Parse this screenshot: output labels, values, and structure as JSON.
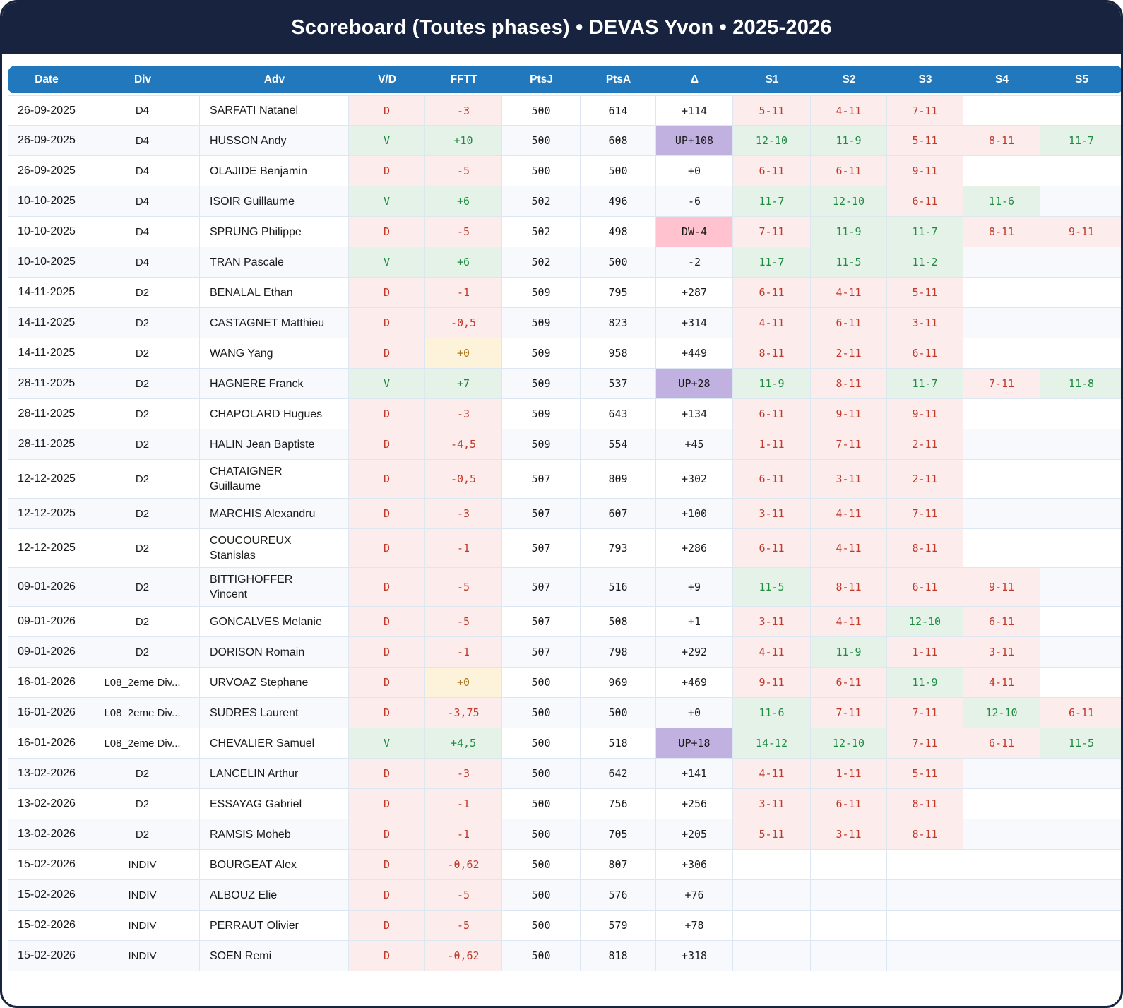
{
  "title": "Scoreboard (Toutes phases) • DEVAS Yvon • 2025-2026",
  "columns": [
    "Date",
    "Div",
    "Adv",
    "V/D",
    "FFTT",
    "PtsJ",
    "PtsA",
    "Δ",
    "S1",
    "S2",
    "S3",
    "S4",
    "S5"
  ],
  "colors": {
    "navy": "#18233f",
    "header_blue": "#2178bd",
    "win_bg": "#e4f2e8",
    "win_text": "#1e8b41",
    "loss_bg": "#fdecec",
    "loss_text": "#c0392b",
    "zero_bg": "#fdf2da",
    "zero_text": "#a9771b",
    "up_bg": "#c0b1e1",
    "down_bg": "#ffc2ce",
    "stripe": "#f7f9fc",
    "grid": "#dde7f2"
  },
  "chart_data": {
    "type": "table",
    "title": "Scoreboard (Toutes phases) • DEVAS Yvon • 2025-2026",
    "columns": [
      "Date",
      "Div",
      "Adv",
      "V/D",
      "FFTT",
      "PtsJ",
      "PtsA",
      "Δ",
      "S1",
      "S2",
      "S3",
      "S4",
      "S5"
    ]
  },
  "rows": [
    {
      "date": "26-09-2025",
      "div": "D4",
      "adv": "SARFATI Natanel",
      "vd": "D",
      "fftt": "-3",
      "ptsj": "500",
      "ptsa": "614",
      "delta": "+114",
      "sets": [
        "5-11",
        "4-11",
        "7-11"
      ]
    },
    {
      "date": "26-09-2025",
      "div": "D4",
      "adv": "HUSSON Andy",
      "vd": "V",
      "fftt": "+10",
      "ptsj": "500",
      "ptsa": "608",
      "delta": "UP+108",
      "sets": [
        "12-10",
        "11-9",
        "5-11",
        "8-11",
        "11-7"
      ]
    },
    {
      "date": "26-09-2025",
      "div": "D4",
      "adv": "OLAJIDE Benjamin",
      "vd": "D",
      "fftt": "-5",
      "ptsj": "500",
      "ptsa": "500",
      "delta": "+0",
      "sets": [
        "6-11",
        "6-11",
        "9-11"
      ]
    },
    {
      "date": "10-10-2025",
      "div": "D4",
      "adv": "ISOIR Guillaume",
      "vd": "V",
      "fftt": "+6",
      "ptsj": "502",
      "ptsa": "496",
      "delta": "-6",
      "sets": [
        "11-7",
        "12-10",
        "6-11",
        "11-6"
      ]
    },
    {
      "date": "10-10-2025",
      "div": "D4",
      "adv": "SPRUNG Philippe",
      "vd": "D",
      "fftt": "-5",
      "ptsj": "502",
      "ptsa": "498",
      "delta": "DW-4",
      "sets": [
        "7-11",
        "11-9",
        "11-7",
        "8-11",
        "9-11"
      ]
    },
    {
      "date": "10-10-2025",
      "div": "D4",
      "adv": "TRAN Pascale",
      "vd": "V",
      "fftt": "+6",
      "ptsj": "502",
      "ptsa": "500",
      "delta": "-2",
      "sets": [
        "11-7",
        "11-5",
        "11-2"
      ]
    },
    {
      "date": "14-11-2025",
      "div": "D2",
      "adv": "BENALAL Ethan",
      "vd": "D",
      "fftt": "-1",
      "ptsj": "509",
      "ptsa": "795",
      "delta": "+287",
      "sets": [
        "6-11",
        "4-11",
        "5-11"
      ]
    },
    {
      "date": "14-11-2025",
      "div": "D2",
      "adv": "CASTAGNET Matthieu",
      "vd": "D",
      "fftt": "-0,5",
      "ptsj": "509",
      "ptsa": "823",
      "delta": "+314",
      "sets": [
        "4-11",
        "6-11",
        "3-11"
      ]
    },
    {
      "date": "14-11-2025",
      "div": "D2",
      "adv": "WANG Yang",
      "vd": "D",
      "fftt": "+0",
      "ptsj": "509",
      "ptsa": "958",
      "delta": "+449",
      "sets": [
        "8-11",
        "2-11",
        "6-11"
      ]
    },
    {
      "date": "28-11-2025",
      "div": "D2",
      "adv": "HAGNERE Franck",
      "vd": "V",
      "fftt": "+7",
      "ptsj": "509",
      "ptsa": "537",
      "delta": "UP+28",
      "sets": [
        "11-9",
        "8-11",
        "11-7",
        "7-11",
        "11-8"
      ]
    },
    {
      "date": "28-11-2025",
      "div": "D2",
      "adv": "CHAPOLARD Hugues",
      "vd": "D",
      "fftt": "-3",
      "ptsj": "509",
      "ptsa": "643",
      "delta": "+134",
      "sets": [
        "6-11",
        "9-11",
        "9-11"
      ]
    },
    {
      "date": "28-11-2025",
      "div": "D2",
      "adv": "HALIN Jean Baptiste",
      "vd": "D",
      "fftt": "-4,5",
      "ptsj": "509",
      "ptsa": "554",
      "delta": "+45",
      "sets": [
        "1-11",
        "7-11",
        "2-11"
      ]
    },
    {
      "date": "12-12-2025",
      "div": "D2",
      "adv": "CHATAIGNER\nGuillaume",
      "vd": "D",
      "fftt": "-0,5",
      "ptsj": "507",
      "ptsa": "809",
      "delta": "+302",
      "sets": [
        "6-11",
        "3-11",
        "2-11"
      ]
    },
    {
      "date": "12-12-2025",
      "div": "D2",
      "adv": "MARCHIS Alexandru",
      "vd": "D",
      "fftt": "-3",
      "ptsj": "507",
      "ptsa": "607",
      "delta": "+100",
      "sets": [
        "3-11",
        "4-11",
        "7-11"
      ]
    },
    {
      "date": "12-12-2025",
      "div": "D2",
      "adv": "COUCOUREUX\nStanislas",
      "vd": "D",
      "fftt": "-1",
      "ptsj": "507",
      "ptsa": "793",
      "delta": "+286",
      "sets": [
        "6-11",
        "4-11",
        "8-11"
      ]
    },
    {
      "date": "09-01-2026",
      "div": "D2",
      "adv": "BITTIGHOFFER\nVincent",
      "vd": "D",
      "fftt": "-5",
      "ptsj": "507",
      "ptsa": "516",
      "delta": "+9",
      "sets": [
        "11-5",
        "8-11",
        "6-11",
        "9-11"
      ]
    },
    {
      "date": "09-01-2026",
      "div": "D2",
      "adv": "GONCALVES Melanie",
      "vd": "D",
      "fftt": "-5",
      "ptsj": "507",
      "ptsa": "508",
      "delta": "+1",
      "sets": [
        "3-11",
        "4-11",
        "12-10",
        "6-11"
      ]
    },
    {
      "date": "09-01-2026",
      "div": "D2",
      "adv": "DORISON Romain",
      "vd": "D",
      "fftt": "-1",
      "ptsj": "507",
      "ptsa": "798",
      "delta": "+292",
      "sets": [
        "4-11",
        "11-9",
        "1-11",
        "3-11"
      ]
    },
    {
      "date": "16-01-2026",
      "div": "L08_2eme Div...",
      "adv": "URVOAZ Stephane",
      "vd": "D",
      "fftt": "+0",
      "ptsj": "500",
      "ptsa": "969",
      "delta": "+469",
      "sets": [
        "9-11",
        "6-11",
        "11-9",
        "4-11"
      ]
    },
    {
      "date": "16-01-2026",
      "div": "L08_2eme Div...",
      "adv": "SUDRES Laurent",
      "vd": "D",
      "fftt": "-3,75",
      "ptsj": "500",
      "ptsa": "500",
      "delta": "+0",
      "sets": [
        "11-6",
        "7-11",
        "7-11",
        "12-10",
        "6-11"
      ]
    },
    {
      "date": "16-01-2026",
      "div": "L08_2eme Div...",
      "adv": "CHEVALIER Samuel",
      "vd": "V",
      "fftt": "+4,5",
      "ptsj": "500",
      "ptsa": "518",
      "delta": "UP+18",
      "sets": [
        "14-12",
        "12-10",
        "7-11",
        "6-11",
        "11-5"
      ]
    },
    {
      "date": "13-02-2026",
      "div": "D2",
      "adv": "LANCELIN Arthur",
      "vd": "D",
      "fftt": "-3",
      "ptsj": "500",
      "ptsa": "642",
      "delta": "+141",
      "sets": [
        "4-11",
        "1-11",
        "5-11"
      ]
    },
    {
      "date": "13-02-2026",
      "div": "D2",
      "adv": "ESSAYAG Gabriel",
      "vd": "D",
      "fftt": "-1",
      "ptsj": "500",
      "ptsa": "756",
      "delta": "+256",
      "sets": [
        "3-11",
        "6-11",
        "8-11"
      ]
    },
    {
      "date": "13-02-2026",
      "div": "D2",
      "adv": "RAMSIS Moheb",
      "vd": "D",
      "fftt": "-1",
      "ptsj": "500",
      "ptsa": "705",
      "delta": "+205",
      "sets": [
        "5-11",
        "3-11",
        "8-11"
      ]
    },
    {
      "date": "15-02-2026",
      "div": "INDIV",
      "adv": "BOURGEAT Alex",
      "vd": "D",
      "fftt": "-0,62",
      "ptsj": "500",
      "ptsa": "807",
      "delta": "+306",
      "sets": []
    },
    {
      "date": "15-02-2026",
      "div": "INDIV",
      "adv": "ALBOUZ Elie",
      "vd": "D",
      "fftt": "-5",
      "ptsj": "500",
      "ptsa": "576",
      "delta": "+76",
      "sets": []
    },
    {
      "date": "15-02-2026",
      "div": "INDIV",
      "adv": "PERRAUT Olivier",
      "vd": "D",
      "fftt": "-5",
      "ptsj": "500",
      "ptsa": "579",
      "delta": "+78",
      "sets": []
    },
    {
      "date": "15-02-2026",
      "div": "INDIV",
      "adv": "SOEN Remi",
      "vd": "D",
      "fftt": "-0,62",
      "ptsj": "500",
      "ptsa": "818",
      "delta": "+318",
      "sets": []
    }
  ]
}
